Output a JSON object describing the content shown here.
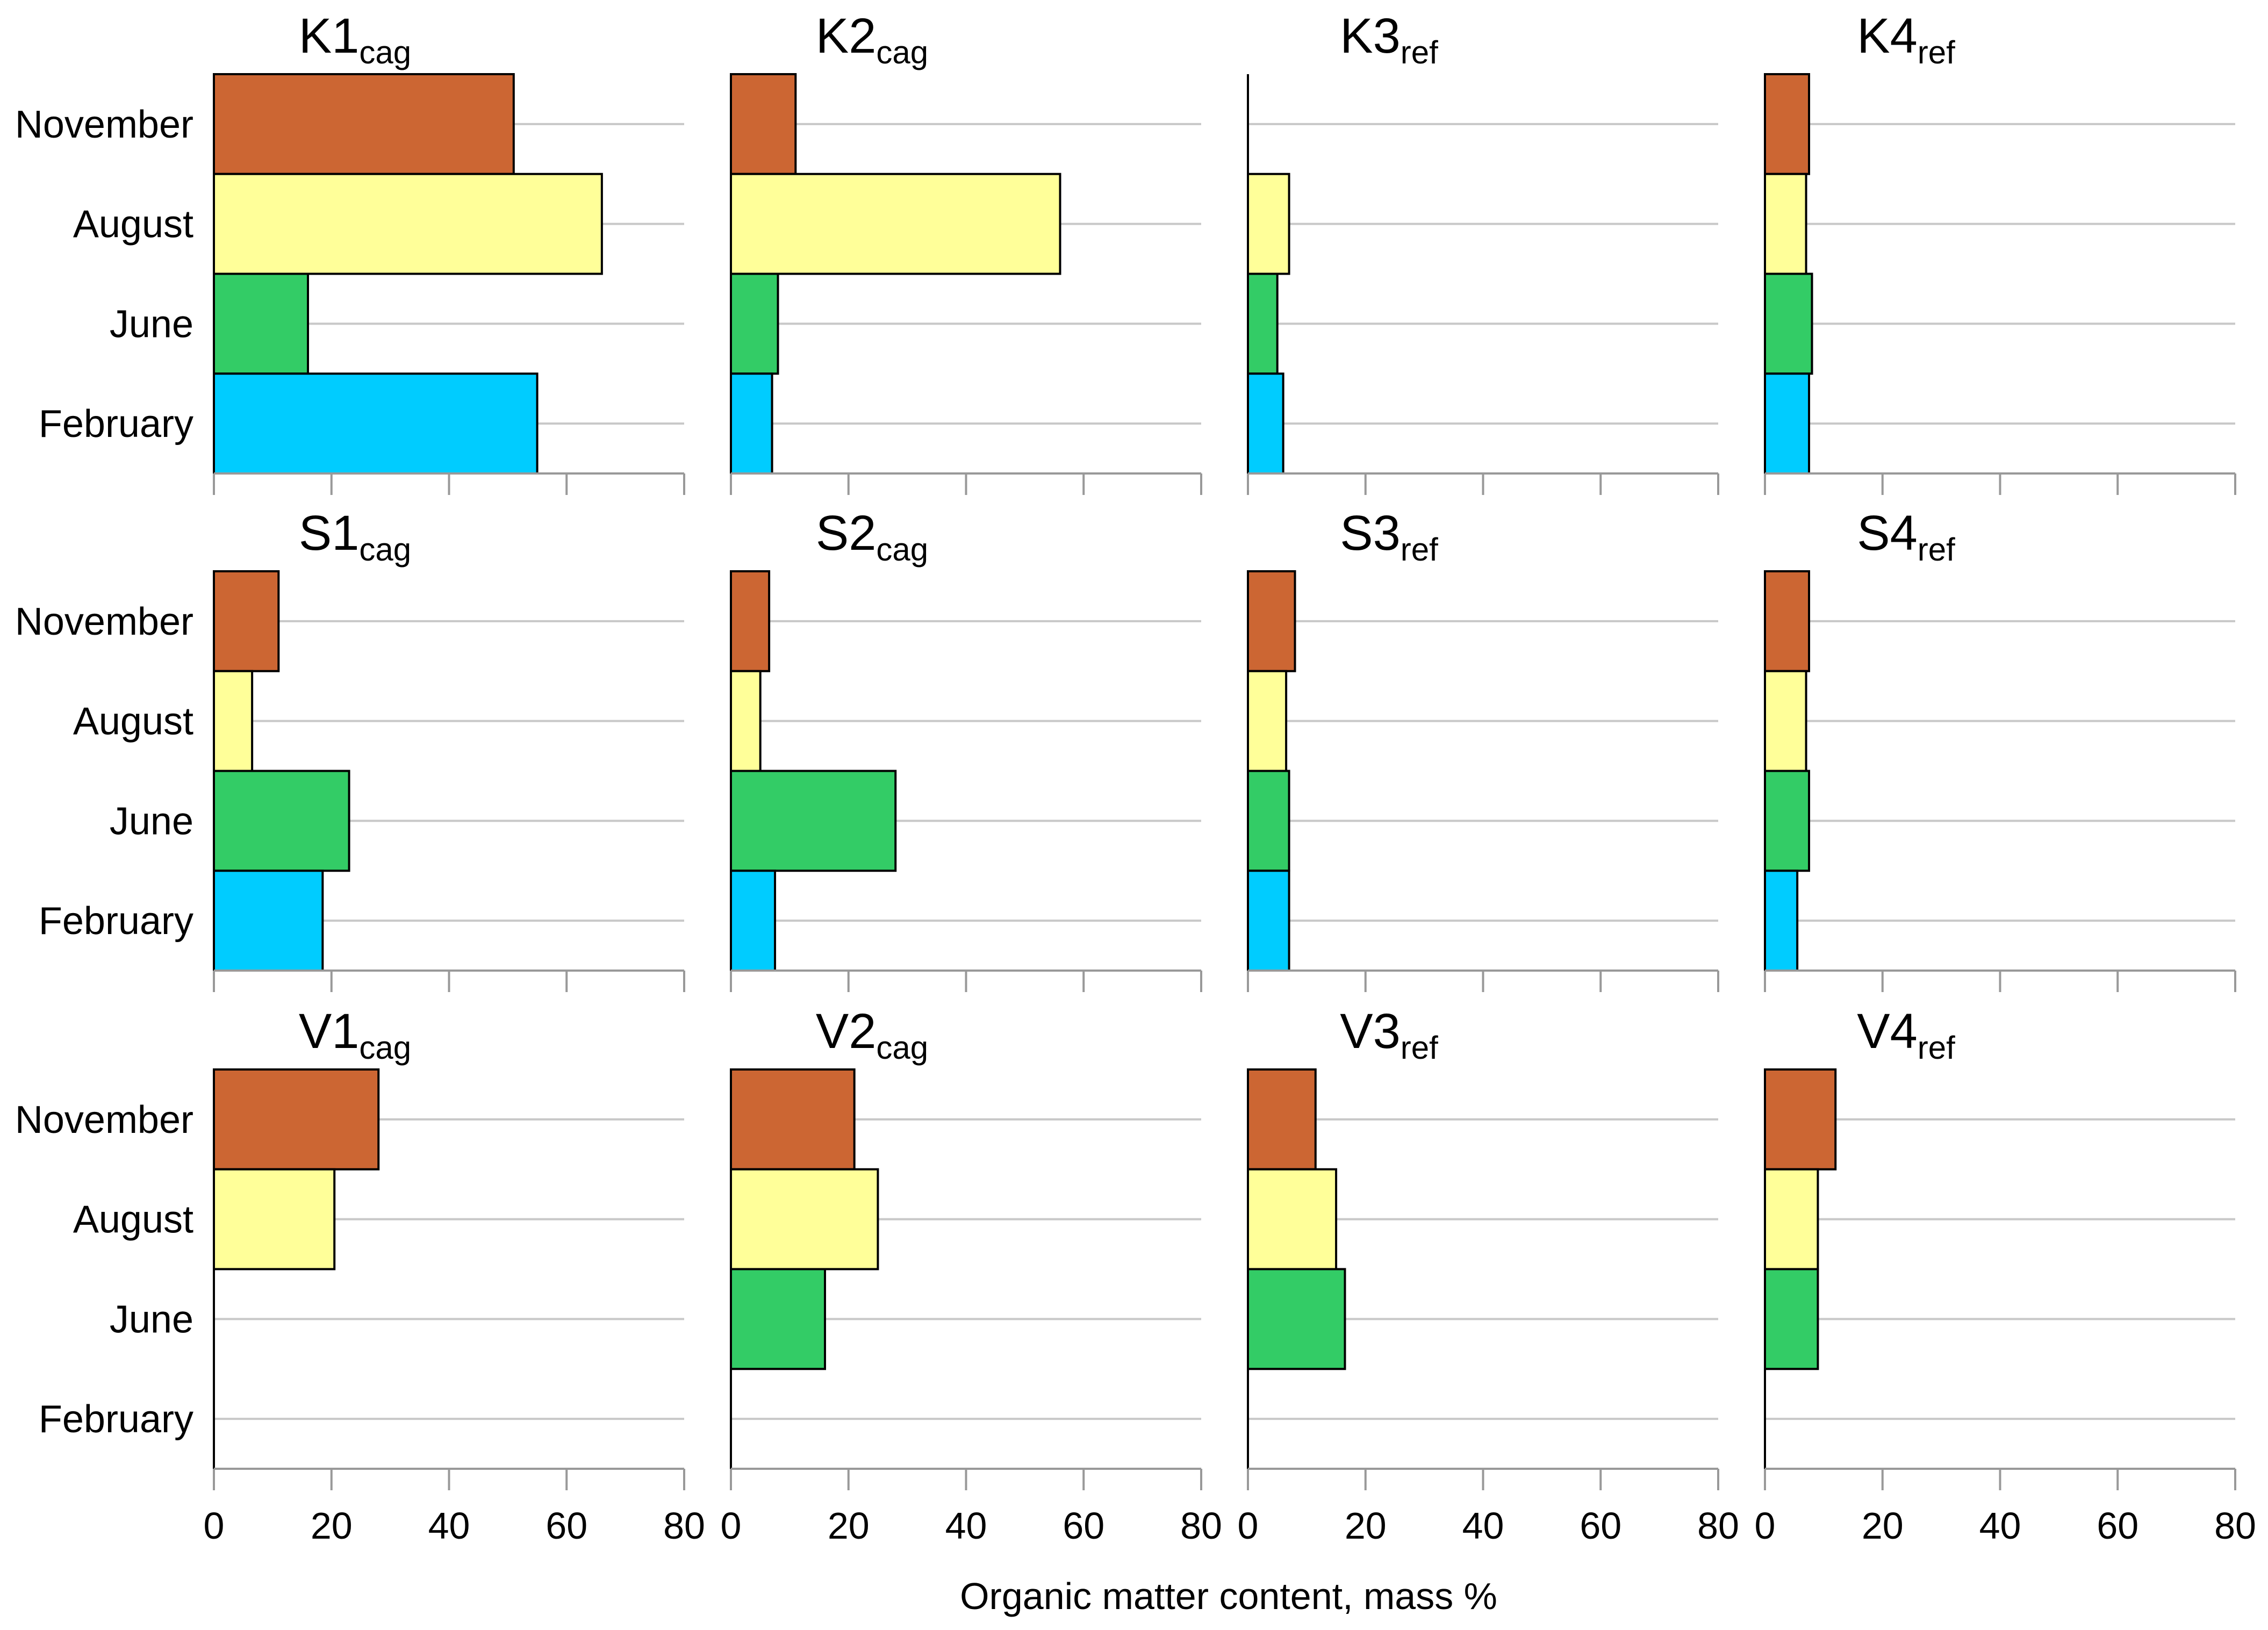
{
  "chart_data": {
    "type": "bar",
    "orientation": "horizontal",
    "xlabel": "Organic matter content, mass %",
    "xlim": [
      0,
      80
    ],
    "xticks": [
      0,
      20,
      40,
      60,
      80
    ],
    "categories": [
      "February",
      "June",
      "August",
      "November"
    ],
    "colors": {
      "November": "#cc6633",
      "August": "#ffff99",
      "June": "#33cc66",
      "February": "#00ccff"
    },
    "panels": [
      {
        "title": "K1",
        "subscript": "cag",
        "values": {
          "February": 55,
          "June": 16,
          "August": 66,
          "November": 51
        }
      },
      {
        "title": "K2",
        "subscript": "cag",
        "values": {
          "February": 7,
          "June": 8,
          "August": 56,
          "November": 11
        }
      },
      {
        "title": "K3",
        "subscript": "ref",
        "values": {
          "February": 6,
          "June": 5,
          "August": 7,
          "November": 0
        }
      },
      {
        "title": "K4",
        "subscript": "ref",
        "values": {
          "February": 7.5,
          "June": 8,
          "August": 7,
          "November": 7.5
        }
      },
      {
        "title": "S1",
        "subscript": "cag",
        "values": {
          "February": 18.5,
          "June": 23,
          "August": 6.5,
          "November": 11
        }
      },
      {
        "title": "S2",
        "subscript": "cag",
        "values": {
          "February": 7.5,
          "June": 28,
          "August": 5,
          "November": 6.5
        }
      },
      {
        "title": "S3",
        "subscript": "ref",
        "values": {
          "February": 7,
          "June": 7,
          "August": 6.5,
          "November": 8
        }
      },
      {
        "title": "S4",
        "subscript": "ref",
        "values": {
          "February": 5.5,
          "June": 7.5,
          "August": 7,
          "November": 7.5
        }
      },
      {
        "title": "V1",
        "subscript": "cag",
        "values": {
          "February": 0,
          "June": 0,
          "August": 20.5,
          "November": 28
        }
      },
      {
        "title": "V2",
        "subscript": "cag",
        "values": {
          "February": 0,
          "June": 16,
          "August": 25,
          "November": 21
        }
      },
      {
        "title": "V3",
        "subscript": "ref",
        "values": {
          "February": 0,
          "June": 16.5,
          "August": 15,
          "November": 11.5
        }
      },
      {
        "title": "V4",
        "subscript": "ref",
        "values": {
          "February": 0,
          "June": 9,
          "August": 9,
          "November": 12
        }
      }
    ]
  }
}
